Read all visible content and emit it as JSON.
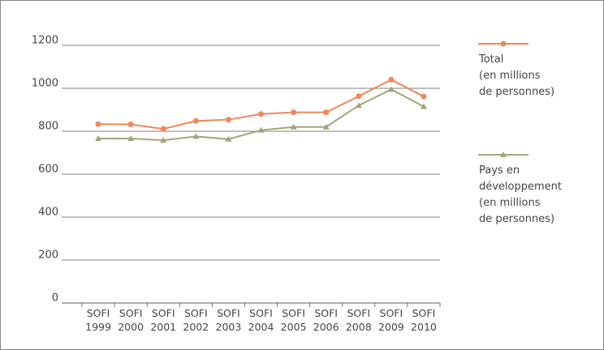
{
  "chart_data": {
    "type": "line",
    "categories": [
      "SOFI 1999",
      "SOFI 2000",
      "SOFI 2001",
      "SOFI 2002",
      "SOFI 2003",
      "SOFI 2004",
      "SOFI 2005",
      "SOFI 2006",
      "SOFI 2008",
      "SOFI 2009",
      "SOFI 2010"
    ],
    "series": [
      {
        "name": "Total\n(en millions\nde personnes)",
        "color": "#f0875a",
        "marker": "circle",
        "values": [
          833,
          832,
          811,
          848,
          854,
          880,
          888,
          888,
          963,
          1040,
          962
        ]
      },
      {
        "name": "Pays en\ndéveloppement\n(en millions\nde personnes)",
        "color": "#a3a679",
        "marker": "triangle",
        "values": [
          766,
          766,
          758,
          776,
          763,
          805,
          820,
          820,
          920,
          995,
          915
        ]
      }
    ],
    "ylim": [
      0,
      1200
    ],
    "yticks": [
      0,
      200,
      400,
      600,
      800,
      1000,
      1200
    ],
    "grid": true
  }
}
